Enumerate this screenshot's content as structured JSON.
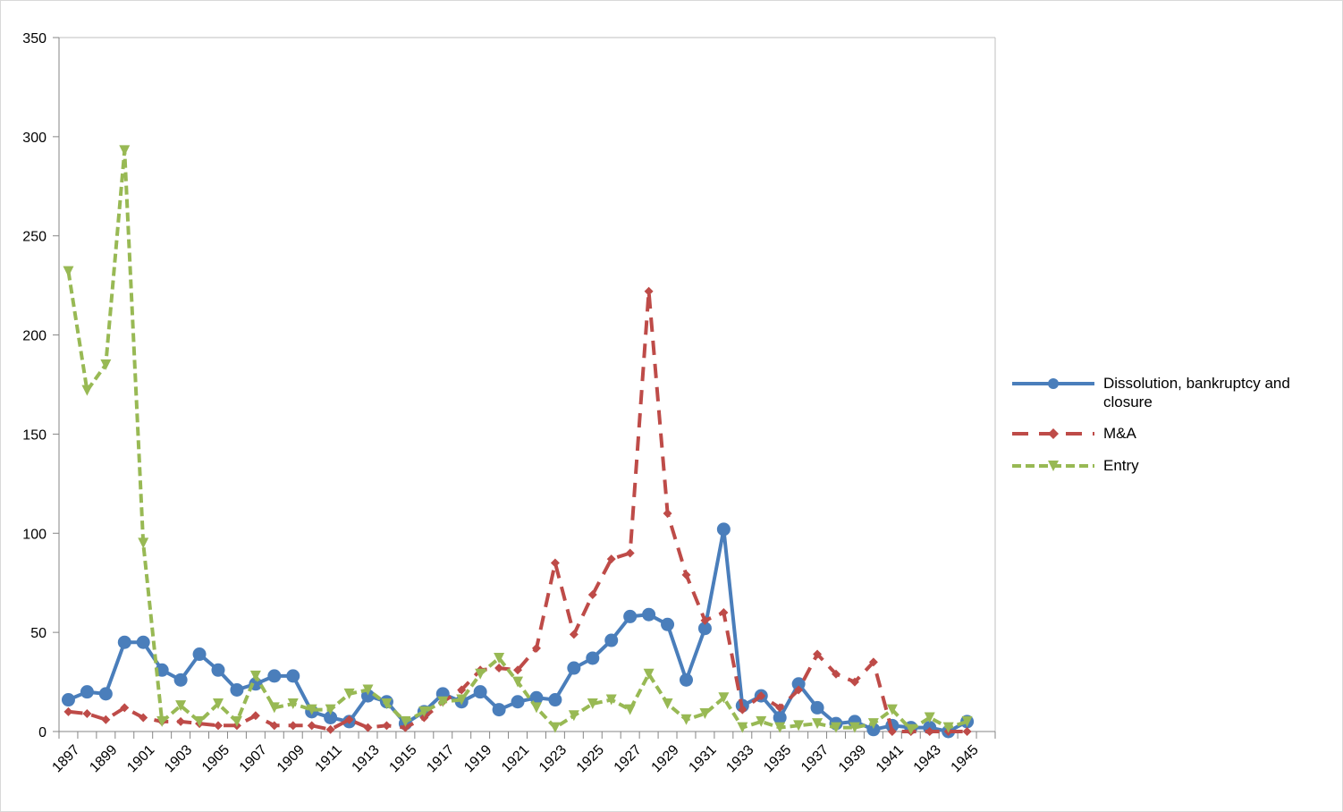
{
  "chart_data": {
    "type": "line",
    "title": "",
    "xlabel": "",
    "ylabel": "",
    "ylim": [
      0,
      350
    ],
    "yticks": [
      0,
      50,
      100,
      150,
      200,
      250,
      300,
      350
    ],
    "grid": false,
    "legend_position": "right",
    "x": [
      1897,
      1898,
      1899,
      1900,
      1901,
      1902,
      1903,
      1904,
      1905,
      1906,
      1907,
      1908,
      1909,
      1910,
      1911,
      1912,
      1913,
      1914,
      1915,
      1916,
      1917,
      1918,
      1919,
      1920,
      1921,
      1922,
      1923,
      1924,
      1925,
      1926,
      1927,
      1928,
      1929,
      1930,
      1931,
      1932,
      1933,
      1934,
      1935,
      1936,
      1937,
      1938,
      1939,
      1940,
      1941,
      1942,
      1943,
      1944,
      1945
    ],
    "xtick_labels": [
      "1897",
      "1899",
      "1901",
      "1903",
      "1905",
      "1907",
      "1909",
      "1911",
      "1913",
      "1915",
      "1917",
      "1919",
      "1921",
      "1923",
      "1925",
      "1927",
      "1929",
      "1931",
      "1933",
      "1935",
      "1937",
      "1939",
      "1941",
      "1943",
      "1945"
    ],
    "series": [
      {
        "name": "Dissolution, bankruptcy and closure",
        "color": "#4a7ebb",
        "line_style": "solid",
        "marker": "circle",
        "values": [
          16,
          20,
          19,
          45,
          45,
          31,
          26,
          39,
          31,
          21,
          24,
          28,
          28,
          10,
          7,
          5,
          18,
          15,
          4,
          10,
          19,
          15,
          20,
          11,
          15,
          17,
          16,
          32,
          37,
          46,
          58,
          59,
          54,
          26,
          52,
          102,
          13,
          18,
          7,
          24,
          12,
          4,
          5,
          1,
          3,
          2,
          2,
          0,
          5
        ]
      },
      {
        "name": "M&A",
        "color": "#be4b48",
        "line_style": "dashed",
        "marker": "diamond",
        "values": [
          10,
          9,
          6,
          12,
          7,
          5,
          5,
          4,
          3,
          3,
          8,
          3,
          3,
          3,
          1,
          6,
          2,
          3,
          2,
          7,
          15,
          21,
          31,
          32,
          31,
          42,
          85,
          49,
          69,
          87,
          90,
          222,
          110,
          79,
          56,
          60,
          11,
          18,
          12,
          21,
          39,
          29,
          25,
          35,
          0,
          0,
          0,
          0,
          0
        ]
      },
      {
        "name": "Entry",
        "color": "#98b954",
        "line_style": "short-dashed",
        "marker": "triangle-down",
        "values": [
          232,
          172,
          185,
          293,
          95,
          5,
          13,
          5,
          14,
          5,
          28,
          12,
          14,
          11,
          11,
          19,
          21,
          14,
          5,
          10,
          15,
          16,
          29,
          37,
          25,
          12,
          2,
          8,
          14,
          16,
          11,
          29,
          14,
          6,
          9,
          17,
          2,
          5,
          2,
          3,
          4,
          2,
          2,
          4,
          11,
          1,
          7,
          2,
          5
        ]
      }
    ]
  },
  "legend": {
    "items": [
      {
        "label": "Dissolution, bankruptcy and closure",
        "icon": "solid-line-circle-marker"
      },
      {
        "label": "M&A",
        "icon": "dashed-line-diamond-marker"
      },
      {
        "label": "Entry",
        "icon": "short-dashed-line-triangle-marker"
      }
    ]
  }
}
